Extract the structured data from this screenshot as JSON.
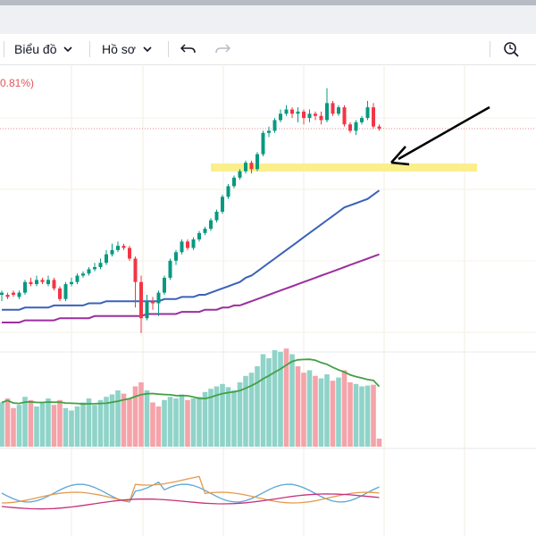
{
  "toolbar": {
    "chart_label": "Biểu đồ",
    "profile_label": "Hồ sơ",
    "chart_icon": "chevron-down",
    "undo_icon": "undo-arrow",
    "redo_icon": "redo-arrow",
    "replay_icon": "magnifier-replay"
  },
  "price_change": "0.81%)",
  "colors": {
    "up": "#089981",
    "down": "#f23645",
    "vol_up": "#8fd3c9",
    "vol_down": "#f5a3a9",
    "ma_fast": "#3a62b8",
    "ma_slow": "#9b2f9f",
    "vol_ma": "#43a047",
    "highlight": "#fbef8c",
    "arrow": "#000000"
  },
  "chart_data": {
    "type": "candlestick",
    "candles": [
      {
        "o": 321,
        "c": 322,
        "h": 323,
        "l": 318
      },
      {
        "o": 321,
        "c": 320,
        "h": 322,
        "l": 319
      },
      {
        "o": 322,
        "c": 321,
        "h": 323,
        "l": 320
      },
      {
        "o": 320,
        "c": 322,
        "h": 323,
        "l": 319
      },
      {
        "o": 322,
        "c": 327,
        "h": 328,
        "l": 321
      },
      {
        "o": 327,
        "c": 326,
        "h": 329,
        "l": 325
      },
      {
        "o": 326,
        "c": 328,
        "h": 330,
        "l": 325
      },
      {
        "o": 328,
        "c": 327,
        "h": 329,
        "l": 326
      },
      {
        "o": 326,
        "c": 328,
        "h": 330,
        "l": 325
      },
      {
        "o": 328,
        "c": 324,
        "h": 329,
        "l": 323
      },
      {
        "o": 324,
        "c": 319,
        "h": 325,
        "l": 318
      },
      {
        "o": 319,
        "c": 326,
        "h": 327,
        "l": 318
      },
      {
        "o": 326,
        "c": 327,
        "h": 329,
        "l": 325
      },
      {
        "o": 327,
        "c": 330,
        "h": 331,
        "l": 326
      },
      {
        "o": 330,
        "c": 331,
        "h": 332,
        "l": 329
      },
      {
        "o": 331,
        "c": 333,
        "h": 334,
        "l": 330
      },
      {
        "o": 333,
        "c": 334,
        "h": 336,
        "l": 332
      },
      {
        "o": 334,
        "c": 336,
        "h": 338,
        "l": 333
      },
      {
        "o": 336,
        "c": 340,
        "h": 342,
        "l": 335
      },
      {
        "o": 340,
        "c": 342,
        "h": 345,
        "l": 339
      },
      {
        "o": 342,
        "c": 344,
        "h": 346,
        "l": 341
      },
      {
        "o": 344,
        "c": 343,
        "h": 345,
        "l": 342
      },
      {
        "o": 343,
        "c": 338,
        "h": 344,
        "l": 337
      },
      {
        "o": 338,
        "c": 327,
        "h": 339,
        "l": 315
      },
      {
        "o": 327,
        "c": 310,
        "h": 330,
        "l": 303
      },
      {
        "o": 310,
        "c": 318,
        "h": 321,
        "l": 309
      },
      {
        "o": 318,
        "c": 317,
        "h": 320,
        "l": 314
      },
      {
        "o": 317,
        "c": 322,
        "h": 323,
        "l": 311
      },
      {
        "o": 322,
        "c": 329,
        "h": 330,
        "l": 321
      },
      {
        "o": 329,
        "c": 337,
        "h": 338,
        "l": 328
      },
      {
        "o": 337,
        "c": 341,
        "h": 342,
        "l": 335
      },
      {
        "o": 341,
        "c": 346,
        "h": 347,
        "l": 340
      },
      {
        "o": 346,
        "c": 343,
        "h": 347,
        "l": 342
      },
      {
        "o": 343,
        "c": 347,
        "h": 348,
        "l": 342
      },
      {
        "o": 347,
        "c": 350,
        "h": 351,
        "l": 346
      },
      {
        "o": 350,
        "c": 352,
        "h": 353,
        "l": 349
      },
      {
        "o": 352,
        "c": 356,
        "h": 357,
        "l": 351
      },
      {
        "o": 356,
        "c": 360,
        "h": 361,
        "l": 355
      },
      {
        "o": 360,
        "c": 367,
        "h": 368,
        "l": 359
      },
      {
        "o": 367,
        "c": 372,
        "h": 373,
        "l": 366
      },
      {
        "o": 372,
        "c": 376,
        "h": 377,
        "l": 371
      },
      {
        "o": 376,
        "c": 379,
        "h": 380,
        "l": 375
      },
      {
        "o": 379,
        "c": 383,
        "h": 384,
        "l": 378
      },
      {
        "o": 383,
        "c": 380,
        "h": 384,
        "l": 378
      },
      {
        "o": 380,
        "c": 387,
        "h": 388,
        "l": 379
      },
      {
        "o": 387,
        "c": 397,
        "h": 398,
        "l": 386
      },
      {
        "o": 397,
        "c": 398,
        "h": 400,
        "l": 395
      },
      {
        "o": 398,
        "c": 403,
        "h": 404,
        "l": 397
      },
      {
        "o": 403,
        "c": 406,
        "h": 408,
        "l": 402
      },
      {
        "o": 406,
        "c": 408,
        "h": 410,
        "l": 405
      },
      {
        "o": 408,
        "c": 406,
        "h": 409,
        "l": 404
      },
      {
        "o": 406,
        "c": 407,
        "h": 409,
        "l": 402
      },
      {
        "o": 407,
        "c": 404,
        "h": 408,
        "l": 401
      },
      {
        "o": 404,
        "c": 406,
        "h": 408,
        "l": 402
      },
      {
        "o": 406,
        "c": 405,
        "h": 407,
        "l": 403
      },
      {
        "o": 405,
        "c": 403,
        "h": 407,
        "l": 401
      },
      {
        "o": 403,
        "c": 411,
        "h": 418,
        "l": 402
      },
      {
        "o": 411,
        "c": 406,
        "h": 412,
        "l": 405
      },
      {
        "o": 406,
        "c": 409,
        "h": 410,
        "l": 405
      },
      {
        "o": 409,
        "c": 401,
        "h": 410,
        "l": 400
      },
      {
        "o": 401,
        "c": 398,
        "h": 402,
        "l": 397
      },
      {
        "o": 398,
        "c": 402,
        "h": 403,
        "l": 396
      },
      {
        "o": 402,
        "c": 404,
        "h": 405,
        "l": 401
      },
      {
        "o": 404,
        "c": 409,
        "h": 412,
        "l": 403
      },
      {
        "o": 409,
        "c": 400,
        "h": 411,
        "l": 399
      },
      {
        "o": 400,
        "c": 399,
        "h": 401,
        "l": 398
      }
    ],
    "volume": [
      55,
      60,
      48,
      52,
      62,
      58,
      50,
      55,
      60,
      52,
      58,
      48,
      45,
      50,
      55,
      60,
      52,
      58,
      62,
      65,
      70,
      66,
      60,
      75,
      80,
      70,
      55,
      50,
      58,
      62,
      60,
      65,
      58,
      60,
      62,
      68,
      72,
      75,
      78,
      74,
      70,
      80,
      88,
      92,
      100,
      115,
      110,
      120,
      118,
      122,
      115,
      100,
      92,
      95,
      88,
      85,
      90,
      82,
      86,
      95,
      80,
      78,
      75,
      76,
      77,
      10
    ],
    "volume_up": [
      1,
      0,
      0,
      1,
      1,
      0,
      1,
      1,
      1,
      0,
      0,
      1,
      1,
      1,
      1,
      1,
      1,
      1,
      1,
      1,
      1,
      0,
      0,
      0,
      0,
      1,
      0,
      0,
      1,
      1,
      1,
      1,
      0,
      1,
      1,
      1,
      1,
      1,
      1,
      1,
      1,
      1,
      1,
      1,
      1,
      1,
      1,
      1,
      1,
      0,
      1,
      0,
      0,
      1,
      0,
      1,
      1,
      0,
      1,
      0,
      0,
      1,
      1,
      1,
      0,
      0
    ],
    "ma_fast": [
      314,
      314,
      314,
      314,
      315,
      315,
      315,
      315,
      315,
      316,
      316,
      316,
      316,
      316,
      316,
      317,
      317,
      317,
      318,
      318,
      318,
      318,
      318,
      318,
      318,
      318,
      318,
      318,
      319,
      319,
      319,
      320,
      320,
      320,
      321,
      321,
      322,
      323,
      324,
      325,
      326,
      327,
      329,
      330,
      332,
      334,
      336,
      338,
      340,
      342,
      344,
      346,
      348,
      350,
      352,
      354,
      356,
      358,
      360,
      362,
      363,
      364,
      365,
      366,
      368,
      370
    ],
    "ma_slow": [
      308,
      308,
      308,
      308,
      309,
      309,
      309,
      309,
      309,
      309,
      310,
      310,
      310,
      310,
      310,
      310,
      311,
      311,
      311,
      311,
      311,
      311,
      311,
      311,
      311,
      312,
      312,
      312,
      312,
      312,
      312,
      313,
      313,
      313,
      313,
      314,
      314,
      314,
      315,
      315,
      316,
      316,
      317,
      318,
      319,
      320,
      321,
      322,
      323,
      324,
      325,
      326,
      327,
      328,
      329,
      330,
      331,
      332,
      333,
      334,
      335,
      336,
      337,
      338,
      339,
      340
    ],
    "support_level": 381
  }
}
